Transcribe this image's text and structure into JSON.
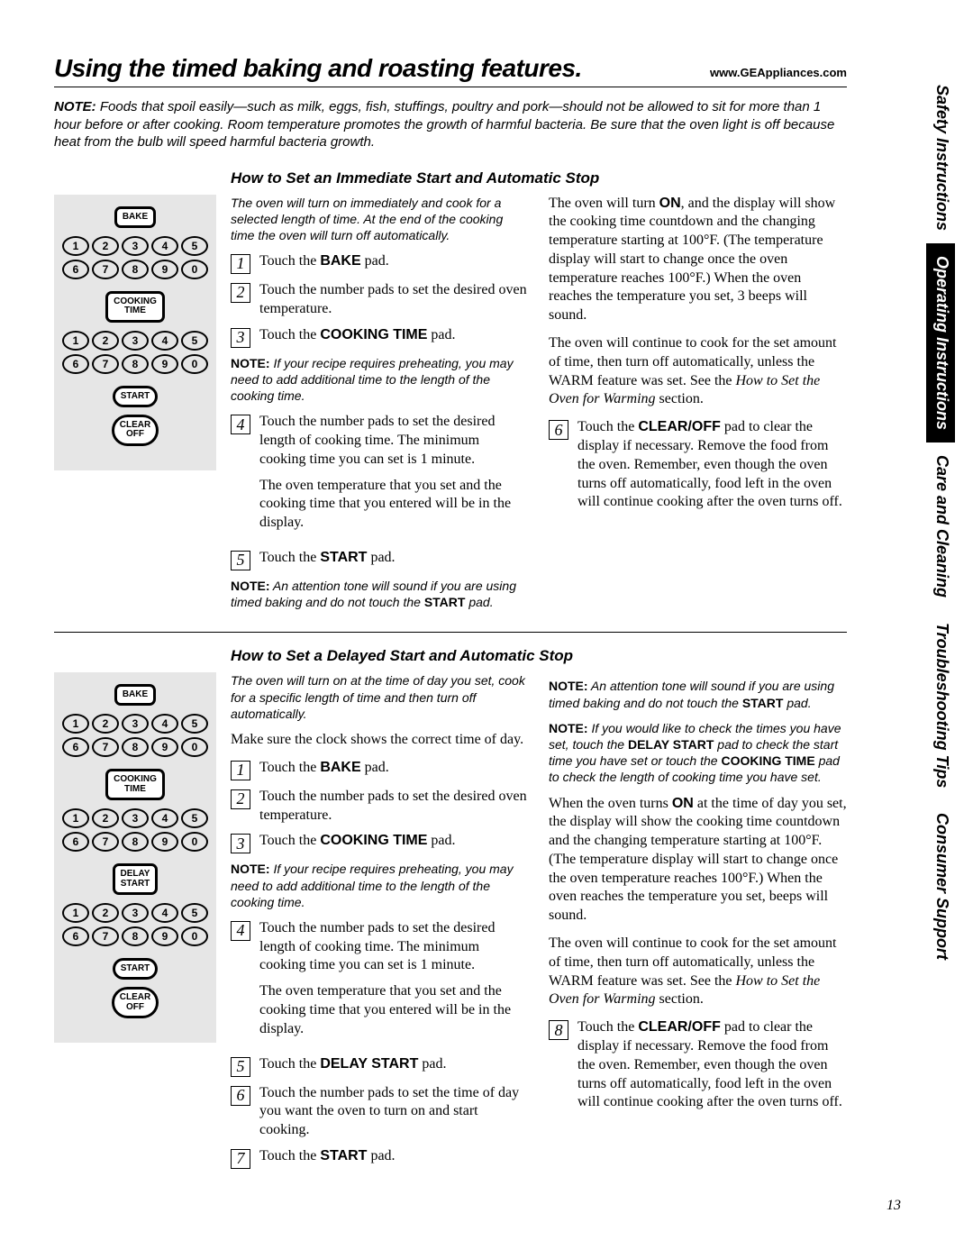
{
  "header": {
    "title": "Using the timed baking and roasting features.",
    "url": "www.GEAppliances.com"
  },
  "top_note": {
    "label": "NOTE:",
    "text": "Foods that spoil easily—such as milk, eggs, fish, stuffings, poultry and pork—should not be allowed to sit for more than 1 hour before or after cooking. Room temperature promotes the growth of harmful bacteria. Be sure that the oven light is off because heat from the bulb will speed harmful bacteria growth."
  },
  "numpad": {
    "row1": [
      "1",
      "2",
      "3",
      "4",
      "5"
    ],
    "row2": [
      "6",
      "7",
      "8",
      "9",
      "0"
    ]
  },
  "panel_labels": {
    "bake": "BAKE",
    "cooking_time": "COOKING\nTIME",
    "start": "START",
    "clear_off": "CLEAR\nOFF",
    "delay_start": "DELAY\nSTART"
  },
  "section1": {
    "title": "How to Set an Immediate Start and Automatic Stop",
    "intro": "The oven will turn on immediately and cook for a selected length of time. At the end of the cooking time the oven will turn off automatically.",
    "steps": [
      "Touch the <b>BAKE</b> pad.",
      "Touch the number pads to set the desired oven temperature.",
      "Touch the <b>COOKING TIME</b> pad."
    ],
    "note_preheat": "<b>NOTE:</b> If your recipe requires preheating, you may need to add additional time to the length of the cooking time.",
    "step4": "Touch the number pads to set the desired length of cooking time. The minimum cooking time you can set is 1 minute.",
    "step4_extra": "The oven temperature that you set and the cooking time that you entered will be in the display.",
    "step5": "Touch the <b>START</b> pad.",
    "note_tone": "<b>NOTE:</b> An attention tone will sound if you are using timed baking and do not touch the <b>START</b> pad.",
    "right1": "The oven will turn <b>ON</b>, and the display will show the cooking time countdown and the changing temperature starting at 100°F. (The temperature display will start to change once the oven temperature reaches 100°F.) When the oven reaches the temperature you set, 3 beeps will sound.",
    "right2_a": "The oven will continue to cook for the set amount of time, then turn off automatically, unless the WARM feature was set. See the ",
    "right2_i": "How to Set the Oven for Warming",
    "right2_b": " section.",
    "step6": "Touch the <b>CLEAR/OFF</b> pad to clear the display if necessary. Remove the food from the oven. Remember, even though the oven turns off automatically, food left in the oven will continue cooking after the oven turns off."
  },
  "section2": {
    "title": "How to Set a Delayed Start and Automatic Stop",
    "intro": "The oven will turn on at the time of day you set, cook for a specific length of time and then turn off automatically.",
    "pre": "Make sure the clock shows the correct time of day.",
    "steps13": [
      "Touch the <b>BAKE</b> pad.",
      "Touch the number pads to set the desired oven temperature.",
      "Touch the <b>COOKING TIME</b> pad."
    ],
    "note_preheat": "<b>NOTE:</b> If your recipe requires preheating, you may need to add additional time to the length of the cooking time.",
    "step4": "Touch the number pads to set the desired length of cooking time. The minimum cooking time you can set is 1 minute.",
    "step4_extra": "The oven temperature that you set and the cooking time that you entered will be in the display.",
    "step5": "Touch the <b>DELAY START</b> pad.",
    "step6": "Touch the number pads to set the time of day you want the oven to turn on and start cooking.",
    "step7": "Touch the <b>START</b> pad.",
    "note_tone": "<b>NOTE:</b> An attention tone will sound if you are using timed baking and do not touch the <b>START</b> pad.",
    "note_check": "<b>NOTE:</b> If you would like to check the times you have set, touch the <b>DELAY START</b> pad to check the start time you have set or touch the <b>COOKING TIME</b> pad to check the length of cooking time you have set.",
    "right1": "When the oven turns <b>ON</b> at the time of day you set, the display will show the cooking time countdown and the changing temperature starting at 100°F. (The temperature display will start to change once the oven temperature reaches 100°F.) When the oven reaches the temperature you set, beeps will sound.",
    "right2_a": "The oven will continue to cook for the set amount of time, then turn off automatically, unless the WARM feature was set. See the ",
    "right2_i": "How to Set the Oven for Warming",
    "right2_b": " section.",
    "step8": "Touch the <b>CLEAR/OFF</b> pad to clear the display if necessary. Remove the food from the oven. Remember, even though the oven turns off automatically, food left in the oven will continue cooking after the oven turns off."
  },
  "tabs": [
    "Safety Instructions",
    "Operating Instructions",
    "Care and Cleaning",
    "Troubleshooting Tips",
    "Consumer Support"
  ],
  "page_number": "13"
}
